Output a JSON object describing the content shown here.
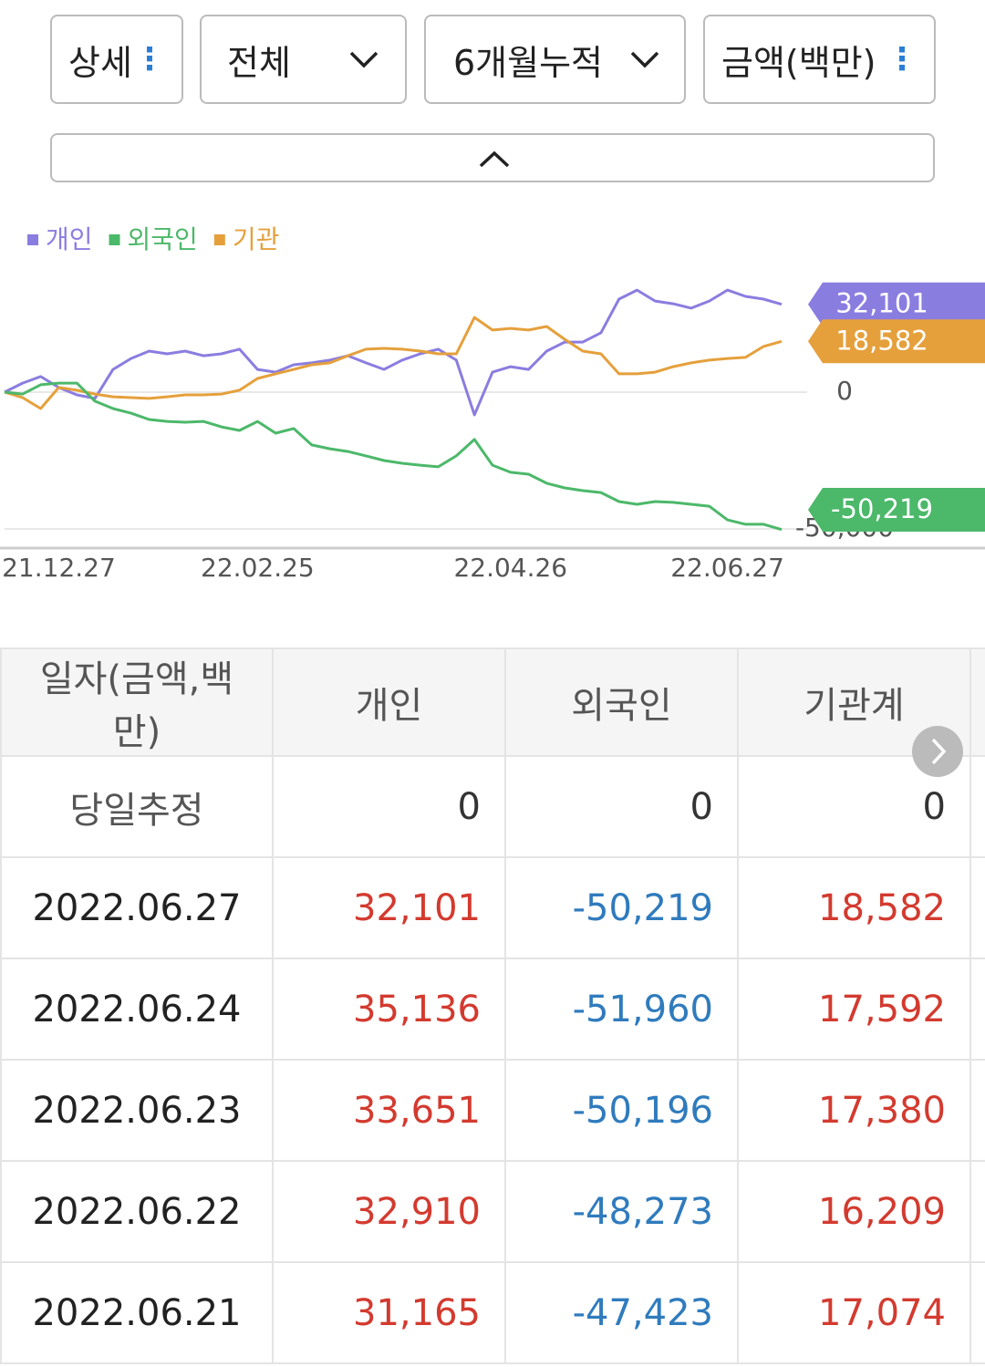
{
  "controls": [
    "상세",
    "전체",
    "6개월누적",
    "금액(백만)"
  ],
  "chart_data": {
    "type": "line",
    "categories": [
      null,
      null,
      null,
      "21.12.27",
      null,
      null,
      null,
      null,
      null,
      null,
      null,
      null,
      null,
      null,
      "22.02.25",
      null,
      null,
      null,
      null,
      null,
      null,
      null,
      null,
      null,
      null,
      null,
      null,
      null,
      "22.04.26",
      null,
      null,
      null,
      null,
      null,
      null,
      null,
      null,
      null,
      null,
      null,
      "22.06.27",
      null,
      null,
      null
    ],
    "series": [
      {
        "name": "개인",
        "color": "#8a7de0",
        "values": [
          0,
          3300,
          5700,
          1700,
          -1000,
          -2300,
          8300,
          12300,
          15000,
          14000,
          15000,
          13300,
          14000,
          15700,
          8300,
          7300,
          10000,
          10700,
          11700,
          13300,
          10700,
          8300,
          11700,
          14000,
          15700,
          11700,
          -8300,
          7300,
          9300,
          8300,
          15000,
          18300,
          18300,
          21700,
          34000,
          37300,
          33300,
          32300,
          30700,
          33300,
          37300,
          35000,
          34000,
          32101
        ],
        "value_labels": [
          null,
          null,
          null,
          null,
          null,
          null,
          null,
          null,
          null,
          null,
          null,
          null,
          null,
          null,
          null,
          null,
          null,
          null,
          null,
          null,
          null,
          null,
          null,
          null,
          null,
          null,
          null,
          null,
          null,
          null,
          null,
          null,
          null,
          null,
          null,
          null,
          null,
          null,
          null,
          null,
          null,
          null,
          null,
          "32,101"
        ]
      },
      {
        "name": "외국인",
        "color": "#4cb86a",
        "values": [
          0,
          -700,
          2700,
          3300,
          3300,
          -3300,
          -6000,
          -7700,
          -10000,
          -10700,
          -11000,
          -10700,
          -12700,
          -14000,
          -10700,
          -15000,
          -13300,
          -19300,
          -20700,
          -21700,
          -23300,
          -25000,
          -26000,
          -26700,
          -27300,
          -23300,
          -17300,
          -26700,
          -29300,
          -30000,
          -33300,
          -35000,
          -36000,
          -36700,
          -40000,
          -41000,
          -40000,
          -40300,
          -41000,
          -41700,
          -46700,
          -48300,
          -48300,
          -50219
        ],
        "value_labels": [
          null,
          null,
          null,
          null,
          null,
          null,
          null,
          null,
          null,
          null,
          null,
          null,
          null,
          null,
          null,
          null,
          null,
          null,
          null,
          null,
          null,
          null,
          null,
          null,
          null,
          null,
          null,
          null,
          null,
          null,
          null,
          null,
          null,
          null,
          null,
          null,
          null,
          null,
          null,
          null,
          null,
          null,
          null,
          "-50,219"
        ]
      },
      {
        "name": "기관",
        "color": "#e5a03c",
        "values": [
          0,
          -2000,
          -6000,
          1700,
          700,
          -700,
          -1700,
          -2000,
          -2300,
          -1700,
          -1000,
          -1000,
          -700,
          700,
          5000,
          6700,
          8300,
          10000,
          10700,
          13300,
          15700,
          16000,
          15700,
          15000,
          14000,
          14000,
          27300,
          22700,
          23300,
          22700,
          24000,
          19300,
          15000,
          14000,
          6700,
          6700,
          7300,
          9300,
          10700,
          11700,
          12300,
          12700,
          16700,
          18582
        ],
        "value_labels": [
          null,
          null,
          null,
          null,
          null,
          null,
          null,
          null,
          null,
          null,
          null,
          null,
          null,
          null,
          null,
          null,
          null,
          null,
          null,
          null,
          null,
          null,
          null,
          null,
          null,
          null,
          null,
          null,
          null,
          null,
          null,
          null,
          null,
          null,
          null,
          null,
          null,
          null,
          null,
          null,
          null,
          null,
          null,
          "18,582"
        ]
      }
    ],
    "ylim": [
      -57000,
      43000
    ],
    "yticks": [
      0,
      {
        "value": -50000,
        "label": "-50,000"
      }
    ],
    "grid": true
  },
  "table": {
    "header": [
      "일자(금액,백만)",
      "개인",
      "외국인",
      "기관계"
    ],
    "rows": [
      [
        "당일추정",
        "0",
        "0",
        "0"
      ],
      [
        "2022.06.27",
        "32,101",
        "-50,219",
        "18,582"
      ],
      [
        "2022.06.24",
        "35,136",
        "-51,960",
        "17,592"
      ],
      [
        "2022.06.23",
        "33,651",
        "-50,196",
        "17,380"
      ],
      [
        "2022.06.22",
        "32,910",
        "-48,273",
        "16,209"
      ],
      [
        "2022.06.21",
        "31,165",
        "-47,423",
        "17,074"
      ]
    ]
  }
}
